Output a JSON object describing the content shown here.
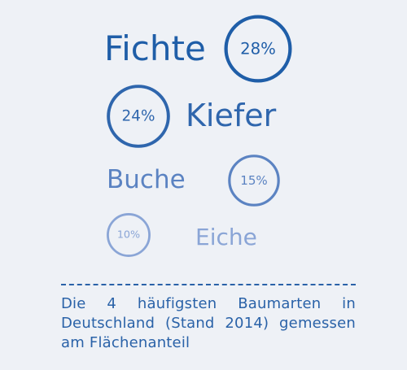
{
  "chart_data": {
    "type": "bubble",
    "unit": "%",
    "categories": [
      "Fichte",
      "Kiefer",
      "Buche",
      "Eiche"
    ],
    "values": [
      28,
      24,
      15,
      10
    ],
    "value_labels": [
      "28%",
      "24%",
      "15%",
      "10%"
    ],
    "colors": [
      "#1f5ea8",
      "#2f66ad",
      "#5b83c2",
      "#8aa5d6"
    ]
  },
  "caption": {
    "text": "Die 4 häufigsten Baumarten in Deutschland (Stand 2014) ge­messen am Flächenanteil"
  }
}
